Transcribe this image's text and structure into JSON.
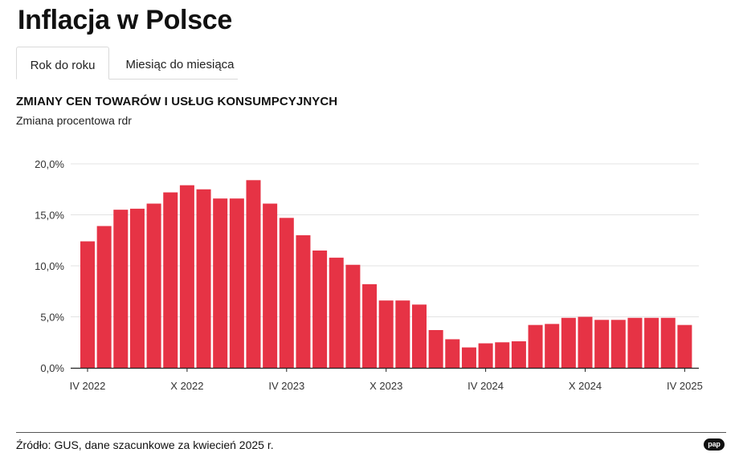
{
  "header": {
    "title": "Inflacja w Polsce"
  },
  "tabs": [
    {
      "label": "Rok do roku",
      "active": true
    },
    {
      "label": "Miesiąc do miesiąca",
      "active": false
    }
  ],
  "colors": {
    "bar": "#e63345",
    "grid": "#e3e3e3",
    "axis": "#222222",
    "tick_text": "#333333"
  },
  "chart_data": {
    "type": "bar",
    "title": "ZMIANY CEN TOWARÓW I USŁUG KONSUMPCYJNYCH",
    "subtitle": "Zmiana procentowa rdr",
    "ylim": [
      0,
      20
    ],
    "y_ticks": [
      0,
      5,
      10,
      15,
      20
    ],
    "y_tick_labels": [
      "0,0%",
      "5,0%",
      "10,0%",
      "15,0%",
      "20,0%"
    ],
    "grid": true,
    "categories": [
      "2022-04",
      "2022-05",
      "2022-06",
      "2022-07",
      "2022-08",
      "2022-09",
      "2022-10",
      "2022-11",
      "2022-12",
      "2023-01",
      "2023-02",
      "2023-03",
      "2023-04",
      "2023-05",
      "2023-06",
      "2023-07",
      "2023-08",
      "2023-09",
      "2023-10",
      "2023-11",
      "2023-12",
      "2024-01",
      "2024-02",
      "2024-03",
      "2024-04",
      "2024-05",
      "2024-06",
      "2024-07",
      "2024-08",
      "2024-09",
      "2024-10",
      "2024-11",
      "2024-12",
      "2025-01",
      "2025-02",
      "2025-03",
      "2025-04"
    ],
    "values": [
      12.4,
      13.9,
      15.5,
      15.6,
      16.1,
      17.2,
      17.9,
      17.5,
      16.6,
      16.6,
      18.4,
      16.1,
      14.7,
      13.0,
      11.5,
      10.8,
      10.1,
      8.2,
      6.6,
      6.6,
      6.2,
      3.7,
      2.8,
      2.0,
      2.4,
      2.5,
      2.6,
      4.2,
      4.3,
      4.9,
      5.0,
      4.7,
      4.7,
      4.9,
      4.9,
      4.9,
      4.2
    ],
    "x_tick_labels": [
      {
        "label": "IV 2022",
        "index": 0
      },
      {
        "label": "X 2022",
        "index": 6
      },
      {
        "label": "IV 2023",
        "index": 12
      },
      {
        "label": "X 2023",
        "index": 18
      },
      {
        "label": "IV 2024",
        "index": 24
      },
      {
        "label": "X 2024",
        "index": 30
      },
      {
        "label": "IV 2025",
        "index": 36
      }
    ]
  },
  "footer": {
    "source": "Źródło: GUS, dane szacunkowe za kwiecień 2025 r.",
    "logo": "pap"
  }
}
